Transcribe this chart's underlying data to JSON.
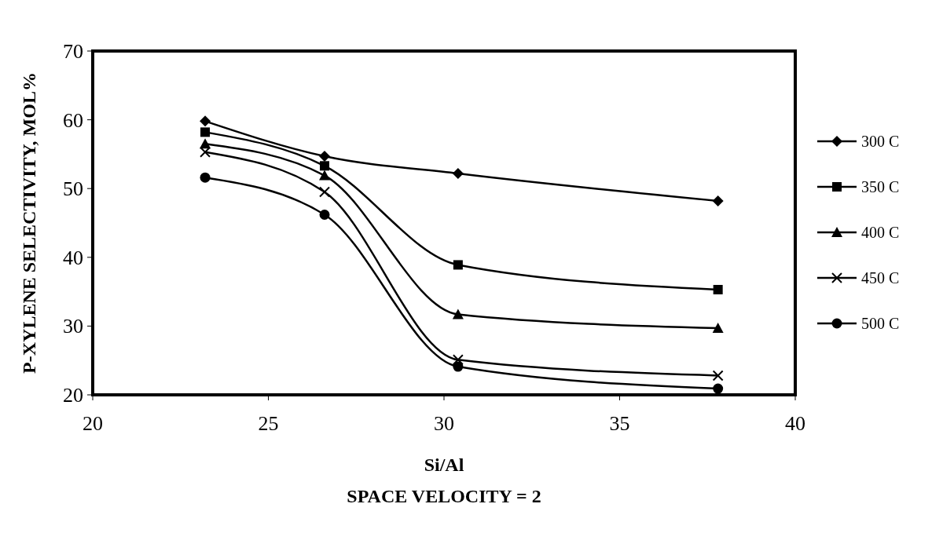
{
  "chart_data": {
    "type": "line",
    "xlabel": "Si/Al",
    "ylabel": "P-XYLENE SELECTIVITY, MOL%",
    "annotations": [
      "SPACE VELOCITY = 2"
    ],
    "x": [
      23.2,
      26.6,
      30.4,
      37.8
    ],
    "series": [
      {
        "name": "300 C",
        "color": "#000000",
        "marker": "diamond",
        "values": [
          59.8,
          54.7,
          52.2,
          48.2
        ]
      },
      {
        "name": "350 C",
        "color": "#000000",
        "marker": "square",
        "values": [
          58.2,
          53.3,
          38.9,
          35.3
        ]
      },
      {
        "name": "400 C",
        "color": "#000000",
        "marker": "triangle",
        "values": [
          56.5,
          51.9,
          31.7,
          29.7
        ]
      },
      {
        "name": "450 C",
        "color": "#000000",
        "marker": "cross",
        "values": [
          55.3,
          49.5,
          25.1,
          22.8
        ]
      },
      {
        "name": "500 C",
        "color": "#000000",
        "marker": "circle",
        "values": [
          51.6,
          46.2,
          24.1,
          20.9
        ]
      }
    ],
    "xlim": [
      20,
      40
    ],
    "xticks": [
      20,
      25,
      30,
      35,
      40
    ],
    "ylim": [
      20,
      70
    ],
    "yticks": [
      20,
      30,
      40,
      50,
      60,
      70
    ],
    "grid": false,
    "legend": "right",
    "line_style": "solid"
  }
}
